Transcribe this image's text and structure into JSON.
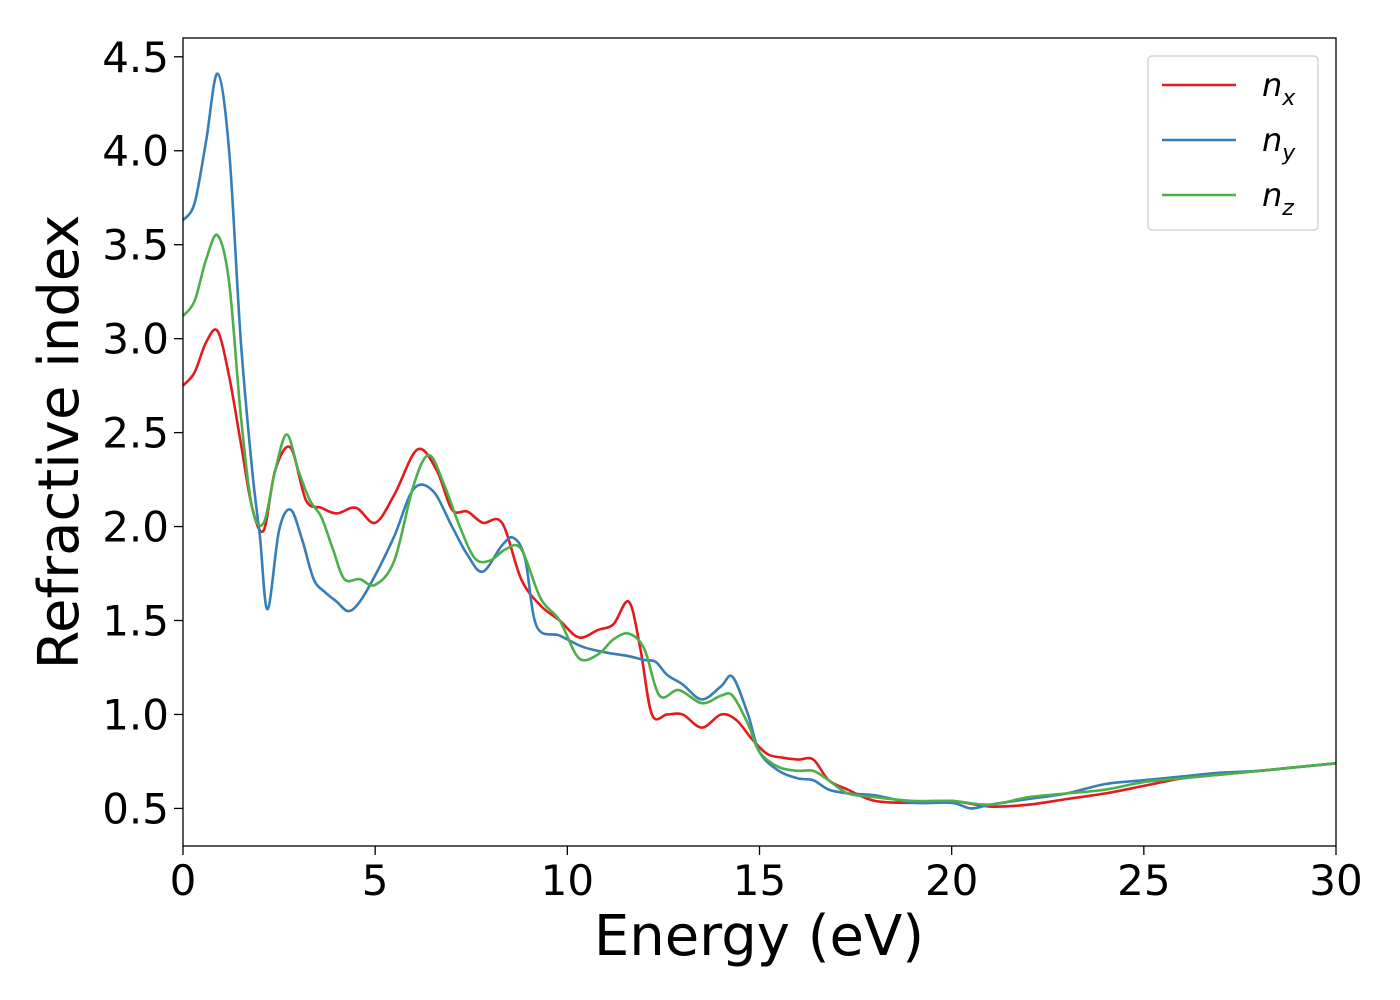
{
  "chart_data": {
    "type": "line",
    "title": "",
    "xlabel": "Energy (eV)",
    "ylabel": "Refractive index",
    "xlim": [
      0,
      30
    ],
    "ylim": [
      0.3,
      4.6
    ],
    "xticks": [
      0,
      5,
      10,
      15,
      20,
      25,
      30
    ],
    "xtick_labels": [
      "0",
      "5",
      "10",
      "15",
      "20",
      "25",
      "30"
    ],
    "yticks": [
      0.5,
      1.0,
      1.5,
      2.0,
      2.5,
      3.0,
      3.5,
      4.0,
      4.5
    ],
    "ytick_labels": [
      "0.5",
      "1.0",
      "1.5",
      "2.0",
      "2.5",
      "3.0",
      "3.5",
      "4.0",
      "4.5"
    ],
    "grid": false,
    "legend": {
      "placement": "top-right",
      "entries": [
        {
          "base": "n",
          "sub": "x",
          "color": "#e41a1c"
        },
        {
          "base": "n",
          "sub": "y",
          "color": "#377eb8"
        },
        {
          "base": "n",
          "sub": "z",
          "color": "#4daf4a"
        }
      ]
    },
    "series": [
      {
        "name": "n_x",
        "color": "#e41a1c",
        "x": [
          0,
          0.3,
          0.6,
          0.9,
          1.2,
          1.5,
          1.8,
          2.1,
          2.4,
          2.8,
          3.2,
          3.6,
          4.0,
          4.5,
          5.0,
          5.5,
          6.1,
          6.6,
          7.0,
          7.4,
          7.8,
          8.3,
          8.8,
          9.3,
          9.8,
          10.3,
          10.8,
          11.2,
          11.6,
          11.9,
          12.2,
          12.6,
          13.0,
          13.5,
          14.0,
          14.4,
          14.8,
          15.2,
          15.6,
          16.0,
          16.4,
          16.8,
          17.3,
          18.0,
          19.0,
          20.0,
          21.0,
          22.0,
          23.0,
          24.0,
          25.0,
          26.0,
          27.0,
          28.0,
          29.0,
          30.0
        ],
        "y": [
          2.75,
          2.82,
          2.98,
          3.04,
          2.8,
          2.45,
          2.1,
          1.98,
          2.3,
          2.42,
          2.14,
          2.1,
          2.07,
          2.1,
          2.02,
          2.17,
          2.41,
          2.3,
          2.09,
          2.08,
          2.02,
          2.02,
          1.72,
          1.58,
          1.5,
          1.41,
          1.45,
          1.48,
          1.6,
          1.35,
          1.0,
          1.0,
          1.0,
          0.93,
          1.0,
          0.97,
          0.87,
          0.79,
          0.77,
          0.76,
          0.76,
          0.65,
          0.6,
          0.54,
          0.53,
          0.54,
          0.51,
          0.52,
          0.55,
          0.58,
          0.62,
          0.66,
          0.68,
          0.7,
          0.72,
          0.74
        ]
      },
      {
        "name": "n_y",
        "color": "#377eb8",
        "x": [
          0,
          0.3,
          0.6,
          0.9,
          1.2,
          1.5,
          1.8,
          2.0,
          2.2,
          2.5,
          2.8,
          3.1,
          3.4,
          3.7,
          4.0,
          4.3,
          4.6,
          5.0,
          5.5,
          6.0,
          6.5,
          7.0,
          7.4,
          7.8,
          8.3,
          8.6,
          8.9,
          9.2,
          9.8,
          10.4,
          11.0,
          11.6,
          12.0,
          12.3,
          12.6,
          13.0,
          13.5,
          14.0,
          14.3,
          14.7,
          15.0,
          15.5,
          16.0,
          16.4,
          16.8,
          17.3,
          18.0,
          19.0,
          20.0,
          20.5,
          21.0,
          22.0,
          23.0,
          24.0,
          25.0,
          26.0,
          27.0,
          28.0,
          29.0,
          30.0
        ],
        "y": [
          3.63,
          3.72,
          4.05,
          4.41,
          4.0,
          3.0,
          2.3,
          1.95,
          1.56,
          1.98,
          2.09,
          1.93,
          1.72,
          1.65,
          1.6,
          1.55,
          1.6,
          1.74,
          1.95,
          2.2,
          2.19,
          2.0,
          1.85,
          1.76,
          1.9,
          1.94,
          1.83,
          1.47,
          1.42,
          1.36,
          1.33,
          1.31,
          1.29,
          1.28,
          1.21,
          1.16,
          1.08,
          1.15,
          1.2,
          1.0,
          0.8,
          0.7,
          0.66,
          0.65,
          0.6,
          0.58,
          0.57,
          0.53,
          0.53,
          0.5,
          0.52,
          0.55,
          0.58,
          0.63,
          0.65,
          0.67,
          0.69,
          0.7,
          0.72,
          0.74
        ]
      },
      {
        "name": "n_z",
        "color": "#4daf4a",
        "x": [
          0,
          0.3,
          0.6,
          0.9,
          1.2,
          1.5,
          1.8,
          2.1,
          2.4,
          2.7,
          3.0,
          3.3,
          3.6,
          3.9,
          4.2,
          4.6,
          5.0,
          5.5,
          6.0,
          6.4,
          6.8,
          7.2,
          7.6,
          8.0,
          8.4,
          8.8,
          9.3,
          9.8,
          10.3,
          10.8,
          11.2,
          11.6,
          12.0,
          12.4,
          12.9,
          13.5,
          14.0,
          14.3,
          14.7,
          15.0,
          15.5,
          16.0,
          16.4,
          16.8,
          17.3,
          18.0,
          19.0,
          20.0,
          21.0,
          22.0,
          23.0,
          24.0,
          25.0,
          26.0,
          27.0,
          28.0,
          29.0,
          30.0
        ],
        "y": [
          3.12,
          3.2,
          3.42,
          3.55,
          3.3,
          2.6,
          2.1,
          2.02,
          2.3,
          2.49,
          2.3,
          2.14,
          2.05,
          1.88,
          1.72,
          1.72,
          1.69,
          1.82,
          2.22,
          2.38,
          2.22,
          2.0,
          1.83,
          1.82,
          1.88,
          1.88,
          1.62,
          1.5,
          1.3,
          1.32,
          1.4,
          1.43,
          1.35,
          1.1,
          1.13,
          1.06,
          1.1,
          1.1,
          0.95,
          0.8,
          0.72,
          0.7,
          0.7,
          0.65,
          0.58,
          0.56,
          0.54,
          0.54,
          0.52,
          0.56,
          0.58,
          0.6,
          0.64,
          0.66,
          0.68,
          0.7,
          0.72,
          0.74
        ]
      }
    ]
  }
}
